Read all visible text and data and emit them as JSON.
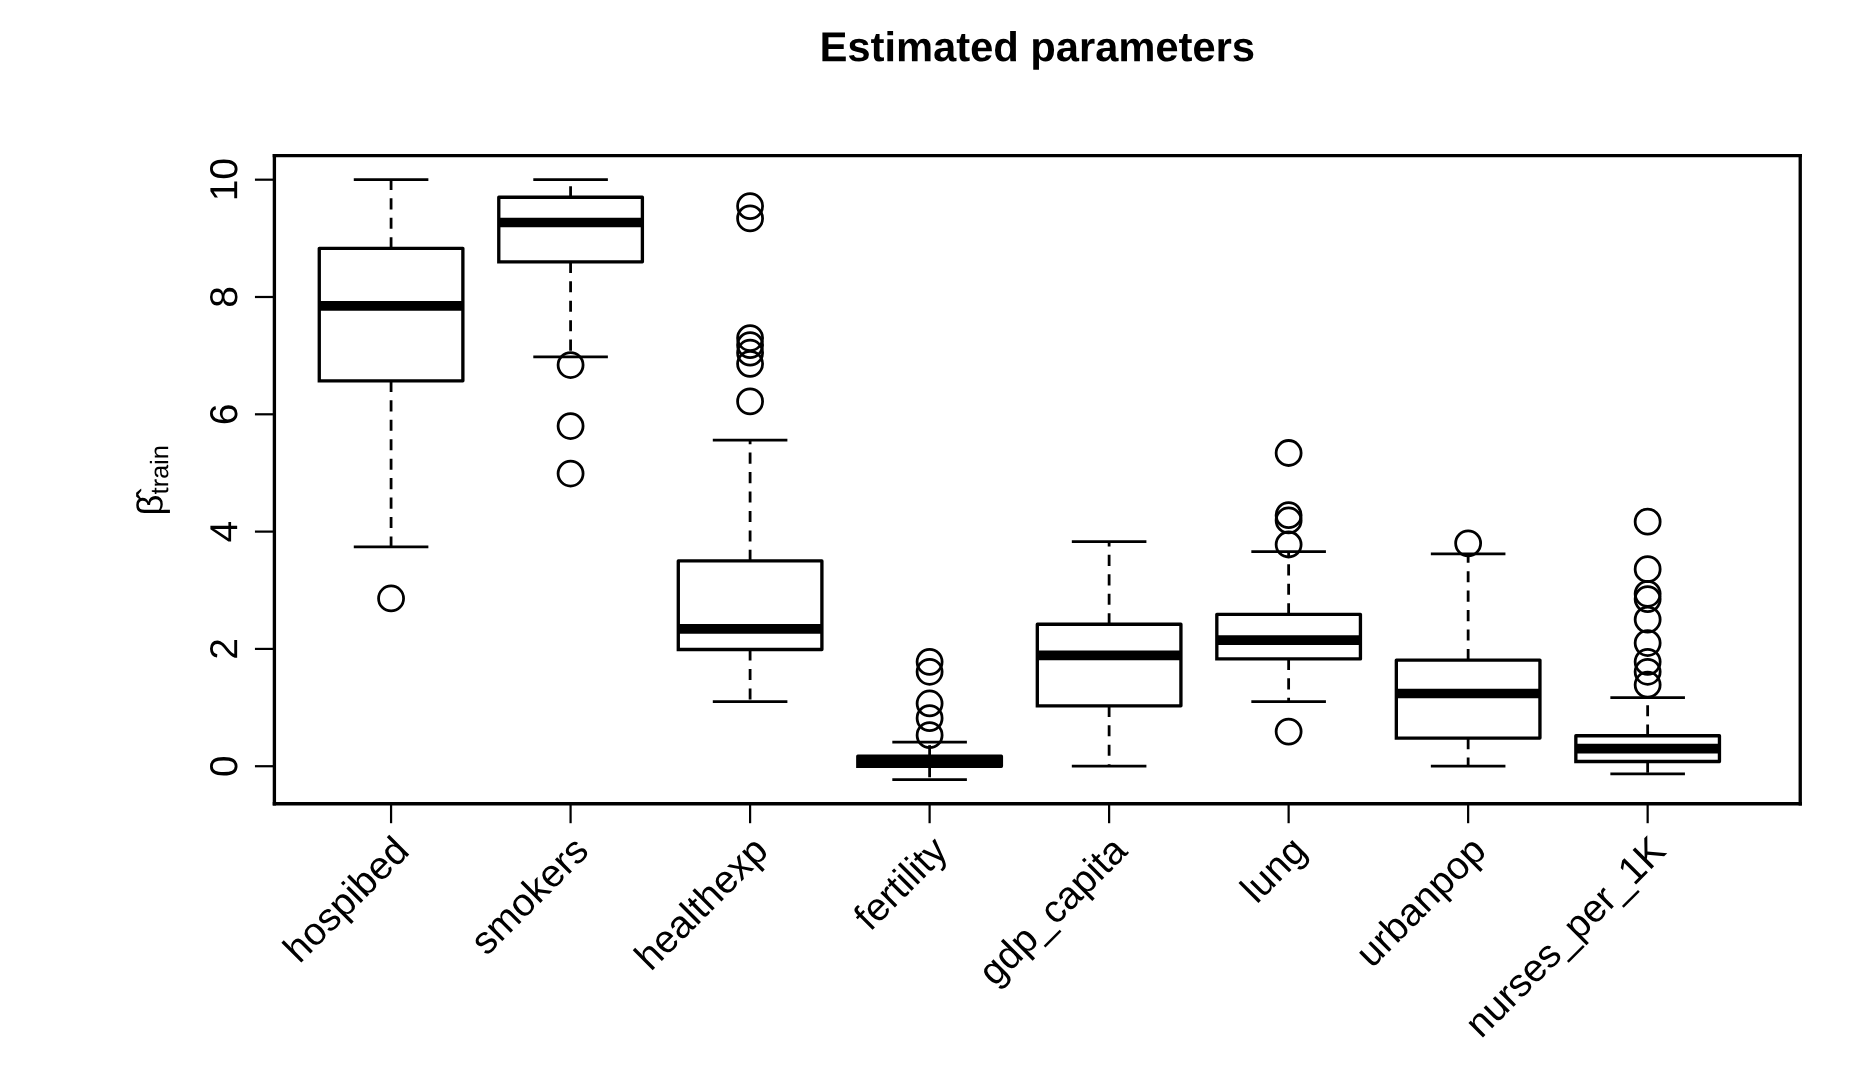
{
  "chart_data": {
    "type": "box",
    "title": "Estimated parameters",
    "ylabel": "β̂$_{train}$",
    "categories": [
      "hospibed",
      "smokers",
      "healthexp",
      "fertility",
      "gdp_capita",
      "lung",
      "urbanpop",
      "nurses_per_1K"
    ],
    "boxes": [
      {
        "low": 3.74,
        "q1": 6.57,
        "median": 7.85,
        "q3": 8.83,
        "high": 10.0,
        "outliers": [
          2.86
        ]
      },
      {
        "low": 6.98,
        "q1": 8.6,
        "median": 9.27,
        "q3": 9.7,
        "high": 10.0,
        "outliers": [
          6.84,
          5.8,
          4.99
        ]
      },
      {
        "low": 1.1,
        "q1": 1.99,
        "median": 2.34,
        "q3": 3.5,
        "high": 5.56,
        "outliers": [
          6.22,
          6.86,
          7.05,
          7.18,
          7.3,
          9.34,
          9.55
        ]
      },
      {
        "low": -0.23,
        "q1": 0.0,
        "median": 0.08,
        "q3": 0.17,
        "high": 0.41,
        "outliers": [
          0.53,
          0.82,
          1.07,
          1.61,
          1.78
        ]
      },
      {
        "low": 0.0,
        "q1": 1.03,
        "median": 1.89,
        "q3": 2.42,
        "high": 3.83
      },
      {
        "low": 1.1,
        "q1": 1.83,
        "median": 2.15,
        "q3": 2.59,
        "high": 3.66,
        "outliers": [
          0.59,
          3.78,
          4.19,
          4.28,
          5.34
        ]
      },
      {
        "low": 0.0,
        "q1": 0.48,
        "median": 1.24,
        "q3": 1.81,
        "high": 3.62,
        "outliers": [
          3.8
        ]
      },
      {
        "low": -0.13,
        "q1": 0.08,
        "median": 0.3,
        "q3": 0.52,
        "high": 1.17,
        "outliers": [
          1.39,
          1.61,
          1.78,
          2.1,
          2.5,
          2.85,
          2.94,
          3.36,
          4.17
        ]
      }
    ],
    "color": "#000000",
    "ylim": [
      -0.64,
      10.41
    ],
    "yticks": [
      0,
      2,
      4,
      6,
      8,
      10
    ],
    "grid": false,
    "legend": false,
    "marker": "circle",
    "line_style": "dashed"
  }
}
